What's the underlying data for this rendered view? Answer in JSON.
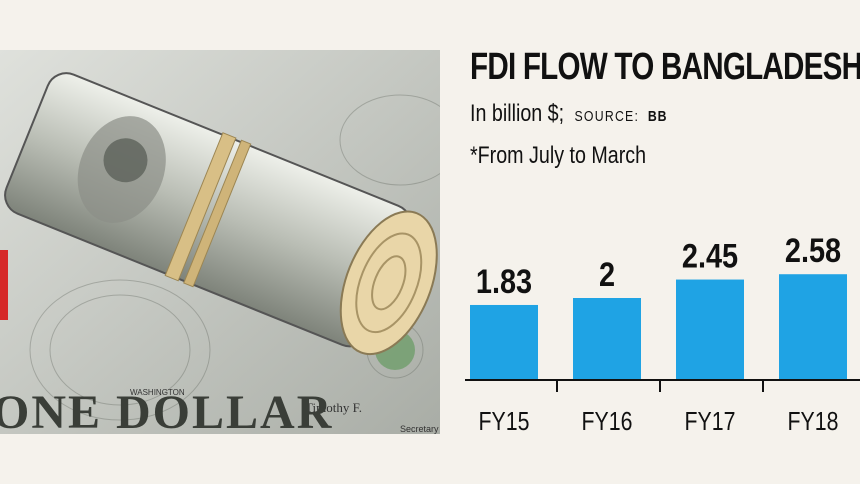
{
  "header": {
    "title": "FDI FLOW TO BANGLADESH",
    "units": "In billion $;",
    "source_label": "SOURCE:",
    "source_value": "BB",
    "note": "*From July to March"
  },
  "photo": {
    "banner_text": "ONE DOLLAR",
    "signature_text": "Timothy F.",
    "washington_text": "WASHINGTON",
    "secretary_text": "Secretary"
  },
  "colors": {
    "bar": "#1fa3e4",
    "text": "#111111",
    "background": "#f5f2ec",
    "axis": "#111111"
  },
  "chart_data": {
    "type": "bar",
    "title": "FDI FLOW TO BANGLADESH",
    "ylabel": "",
    "xlabel": "",
    "categories": [
      "FY15",
      "FY16",
      "FY17",
      "FY18"
    ],
    "values": [
      1.83,
      2,
      2.45,
      2.58
    ],
    "value_labels": [
      "1.83",
      "2",
      "2.45",
      "2.58"
    ],
    "grid": false,
    "legend": "none"
  }
}
